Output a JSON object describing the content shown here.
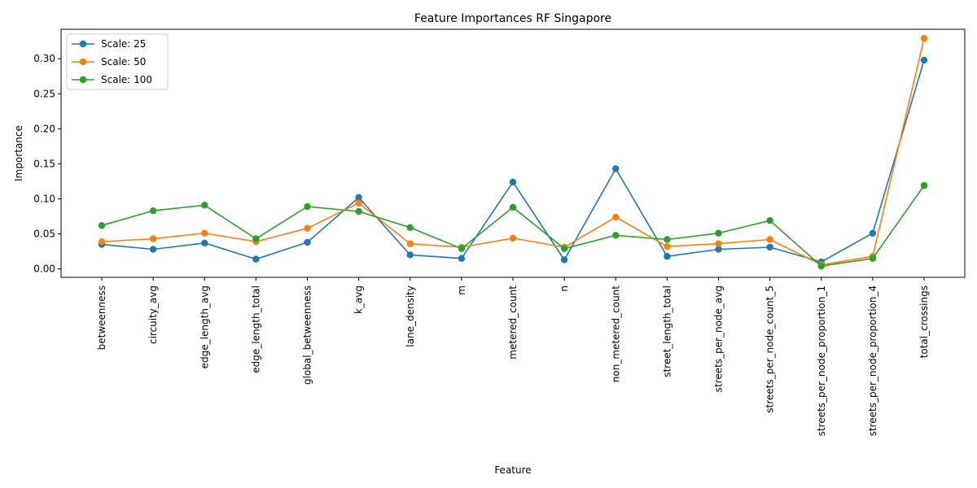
{
  "chart_data": {
    "type": "line",
    "title": "Feature Importances RF Singapore",
    "xlabel": "Feature",
    "ylabel": "Importance",
    "ylim": [
      -0.012,
      0.342
    ],
    "yticks": [
      "0.00",
      "0.05",
      "0.10",
      "0.15",
      "0.20",
      "0.25",
      "0.30"
    ],
    "legend_position": "top-left",
    "grid": false,
    "categories": [
      "betweenness",
      "circuity_avg",
      "edge_length_avg",
      "edge_length_total",
      "global_betweenness",
      "k_avg",
      "lane_density",
      "m",
      "metered_count",
      "n",
      "non_metered_count",
      "street_length_total",
      "streets_per_node_avg",
      "streets_per_node_count_5",
      "streets_per_node_proportion_1",
      "streets_per_node_proportion_4",
      "total_crossings"
    ],
    "series": [
      {
        "name": "Scale: 25",
        "color": "#1f77b4",
        "values": [
          0.035,
          0.028,
          0.037,
          0.014,
          0.038,
          0.102,
          0.02,
          0.015,
          0.124,
          0.013,
          0.143,
          0.018,
          0.028,
          0.031,
          0.01,
          0.051,
          0.298
        ]
      },
      {
        "name": "Scale: 50",
        "color": "#ff7f0e",
        "values": [
          0.039,
          0.043,
          0.051,
          0.039,
          0.058,
          0.094,
          0.036,
          0.031,
          0.044,
          0.031,
          0.074,
          0.032,
          0.036,
          0.042,
          0.006,
          0.018,
          0.329
        ]
      },
      {
        "name": "Scale: 100",
        "color": "#2ca02c",
        "values": [
          0.062,
          0.083,
          0.091,
          0.043,
          0.089,
          0.082,
          0.059,
          0.029,
          0.088,
          0.029,
          0.048,
          0.042,
          0.051,
          0.069,
          0.004,
          0.015,
          0.119
        ]
      }
    ]
  }
}
